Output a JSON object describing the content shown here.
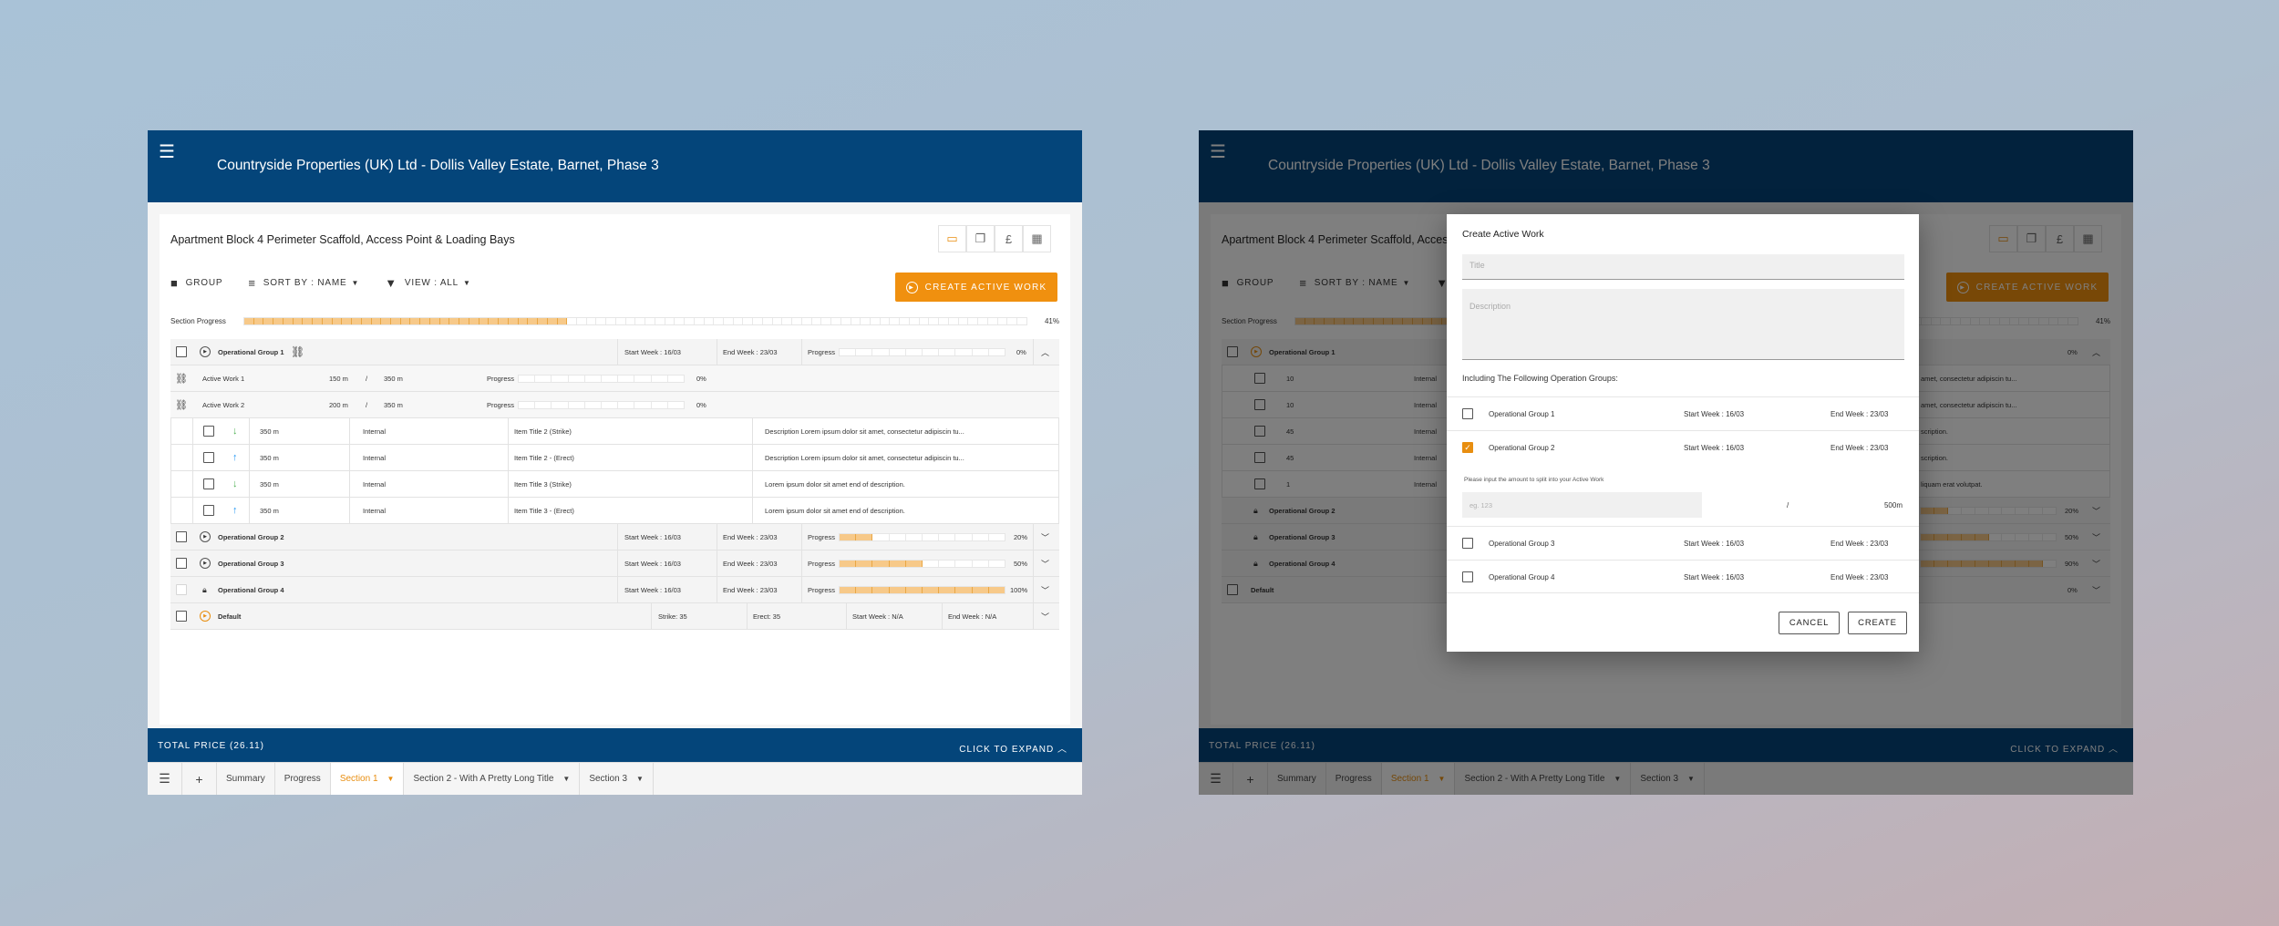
{
  "app": {
    "title": "Countryside Properties (UK) Ltd - Dollis Valley Estate, Barnet, Phase 3",
    "menu_icon": "hamburger-icon"
  },
  "card": {
    "title": "Apartment Block 4 Perimeter Scaffold, Access Point & Loading Bays",
    "icon_buttons": [
      "folder-icon",
      "copy-icon",
      "pound-icon",
      "table-icon"
    ],
    "pound_symbol": "£",
    "active_icon_color": "#e88e10"
  },
  "toolbar": {
    "group_label": "GROUP",
    "sort_label": "SORT BY :  NAME",
    "view_label": "VIEW :  ALL",
    "create_label": "CREATE ACTIVE WORK"
  },
  "section_progress": {
    "label": "Section Progress",
    "pct": "41%",
    "value": 0.41
  },
  "groups_left": {
    "op1": {
      "name": "Operational Group 1",
      "start": "Start Week : 16/03",
      "end": "End Week : 23/03",
      "progress_label": "Progress",
      "pct": "0%",
      "value": 0
    },
    "active_works": [
      {
        "name": "Active Work 1",
        "amount": "150 m",
        "slash": "/",
        "total": "350 m",
        "progress_label": "Progress",
        "pct": "0%",
        "value": 0
      },
      {
        "name": "Active Work 2",
        "amount": "200 m",
        "slash": "/",
        "total": "350 m",
        "progress_label": "Progress",
        "pct": "0%",
        "value": 0
      }
    ],
    "items": [
      {
        "amount": "350 m",
        "type": "Internal",
        "title": "Item Title 2 (Strike)",
        "desc": "Description Lorem ipsum dolor sit amet, consectetur adipiscin tu...",
        "dir": "down"
      },
      {
        "amount": "350 m",
        "type": "Internal",
        "title": "Item Title 2 - (Erect)",
        "desc": "Description Lorem ipsum dolor sit amet, consectetur adipiscin tu...",
        "dir": "up"
      },
      {
        "amount": "350 m",
        "type": "Internal",
        "title": "Item Title 3 (Strike)",
        "desc": "Lorem ipsum dolor sit amet end of description.",
        "dir": "down"
      },
      {
        "amount": "350 m",
        "type": "Internal",
        "title": "Item Title 3 - (Erect)",
        "desc": "Lorem ipsum dolor sit amet end of description.",
        "dir": "up"
      }
    ],
    "others": [
      {
        "name": "Operational Group 2",
        "start": "Start Week : 16/03",
        "end": "End Week : 23/03",
        "progress_label": "Progress",
        "pct": "20%",
        "value": 0.2
      },
      {
        "name": "Operational Group 3",
        "start": "Start Week : 16/03",
        "end": "End Week : 23/03",
        "progress_label": "Progress",
        "pct": "50%",
        "value": 0.5
      },
      {
        "name": "Operational Group 4",
        "start": "Start Week : 16/03",
        "end": "End Week : 23/03",
        "progress_label": "Progress",
        "pct": "100%",
        "value": 1.0
      }
    ],
    "default": {
      "name": "Default",
      "strike": "Strike: 35",
      "erect": "Erect: 35",
      "start": "Start Week : N/A",
      "end": "End Week : N/A"
    }
  },
  "groups_right": {
    "op1": {
      "name": "Operational Group 1",
      "pct": "0%"
    },
    "item_rows": [
      {
        "amount": "10",
        "type": "Internal",
        "desc": "amet, consectetur adipiscin tu..."
      },
      {
        "amount": "10",
        "type": "Internal",
        "desc": "amet, consectetur adipiscin tu..."
      },
      {
        "amount": "45",
        "type": "Internal",
        "desc": "scription."
      },
      {
        "amount": "45",
        "type": "Internal",
        "desc": "scription."
      },
      {
        "amount": "1",
        "type": "Internal",
        "desc": "liquam erat volutpat."
      }
    ],
    "others": [
      {
        "name": "Operational Group 2",
        "pct": "20%",
        "value": 0.2
      },
      {
        "name": "Operational Group 3",
        "pct": "50%",
        "value": 0.5
      },
      {
        "name": "Operational Group 4",
        "pct": "90%",
        "value": 0.9
      }
    ],
    "default": {
      "name": "Default",
      "pct": "0%"
    }
  },
  "footer": {
    "total": "TOTAL PRICE (26.11)",
    "expand": "CLICK TO EXPAND"
  },
  "tabs": [
    "Summary",
    "Progress",
    "Section 1",
    "Section 2 - With A Pretty Long Title",
    "Section 3"
  ],
  "active_tab": "Section 1",
  "dialog": {
    "title": "Create Active Work",
    "title_placeholder": "Title",
    "desc_placeholder": "Description",
    "including": "Including The Following Operation Groups:",
    "groups": [
      {
        "name": "Operational Group 1",
        "start": "Start Week : 16/03",
        "end": "End Week : 23/03",
        "checked": false
      },
      {
        "name": "Operational Group 2",
        "start": "Start Week : 16/03",
        "end": "End Week : 23/03",
        "checked": true
      },
      {
        "name": "Operational Group 3",
        "start": "Start Week : 16/03",
        "end": "End Week : 23/03",
        "checked": false
      },
      {
        "name": "Operational Group 4",
        "start": "Start Week : 16/03",
        "end": "End Week : 23/03",
        "checked": false
      }
    ],
    "hint": "Please input the amount to split into your Active Work",
    "amount_placeholder": "eg. 123",
    "slash": "/",
    "max": "500m",
    "cancel": "CANCEL",
    "create": "CREATE"
  },
  "colors": {
    "brand": "#04457a",
    "accent": "#f0900f",
    "progress_fill": "#f7c989"
  }
}
